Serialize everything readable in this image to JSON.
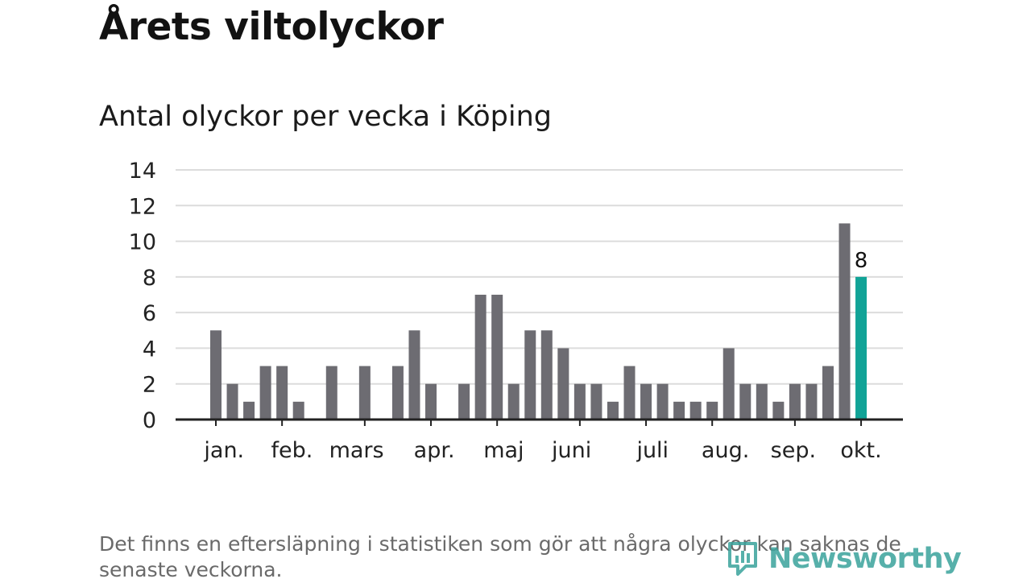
{
  "header": {
    "title": "Årets viltolyckor",
    "subtitle": "Antal olyckor per vecka i Köping"
  },
  "chart_data": {
    "type": "bar",
    "title": "Antal olyckor per vecka i Köping",
    "xlabel": "",
    "ylabel": "",
    "ylim": [
      0,
      14
    ],
    "yticks": [
      "0",
      "2",
      "4",
      "6",
      "8",
      "10",
      "12",
      "14"
    ],
    "grid": true,
    "values": [
      0,
      0,
      5,
      2,
      1,
      3,
      3,
      1,
      0,
      3,
      0,
      3,
      0,
      3,
      5,
      2,
      0,
      2,
      7,
      7,
      2,
      5,
      5,
      4,
      2,
      2,
      1,
      3,
      2,
      2,
      1,
      1,
      1,
      4,
      2,
      2,
      1,
      2,
      2,
      3,
      11,
      8
    ],
    "month_labels": [
      {
        "label": "jan.",
        "week": 2.5
      },
      {
        "label": "feb.",
        "week": 6.6
      },
      {
        "label": "mars",
        "week": 10.5
      },
      {
        "label": "apr.",
        "week": 15.2
      },
      {
        "label": "maj",
        "week": 19.4
      },
      {
        "label": "juni",
        "week": 23.5
      },
      {
        "label": "juli",
        "week": 28.4
      },
      {
        "label": "aug.",
        "week": 32.8
      },
      {
        "label": "sep.",
        "week": 36.9
      },
      {
        "label": "okt.",
        "week": 41.0
      }
    ],
    "month_ticks": [
      2,
      6,
      11,
      15,
      19,
      24,
      28,
      32,
      37,
      41
    ],
    "highlight_index": 41,
    "highlight_label": "8",
    "colors": {
      "bar": "#6d6c72",
      "highlight": "#11a397",
      "grid": "#dcdcdc",
      "axis": "#222222",
      "text": "#222222"
    }
  },
  "footer": {
    "note": "Det finns en eftersläpning i statistiken som gör att några olyckor kan saknas de senaste veckorna.",
    "brand": "Newsworthy"
  }
}
